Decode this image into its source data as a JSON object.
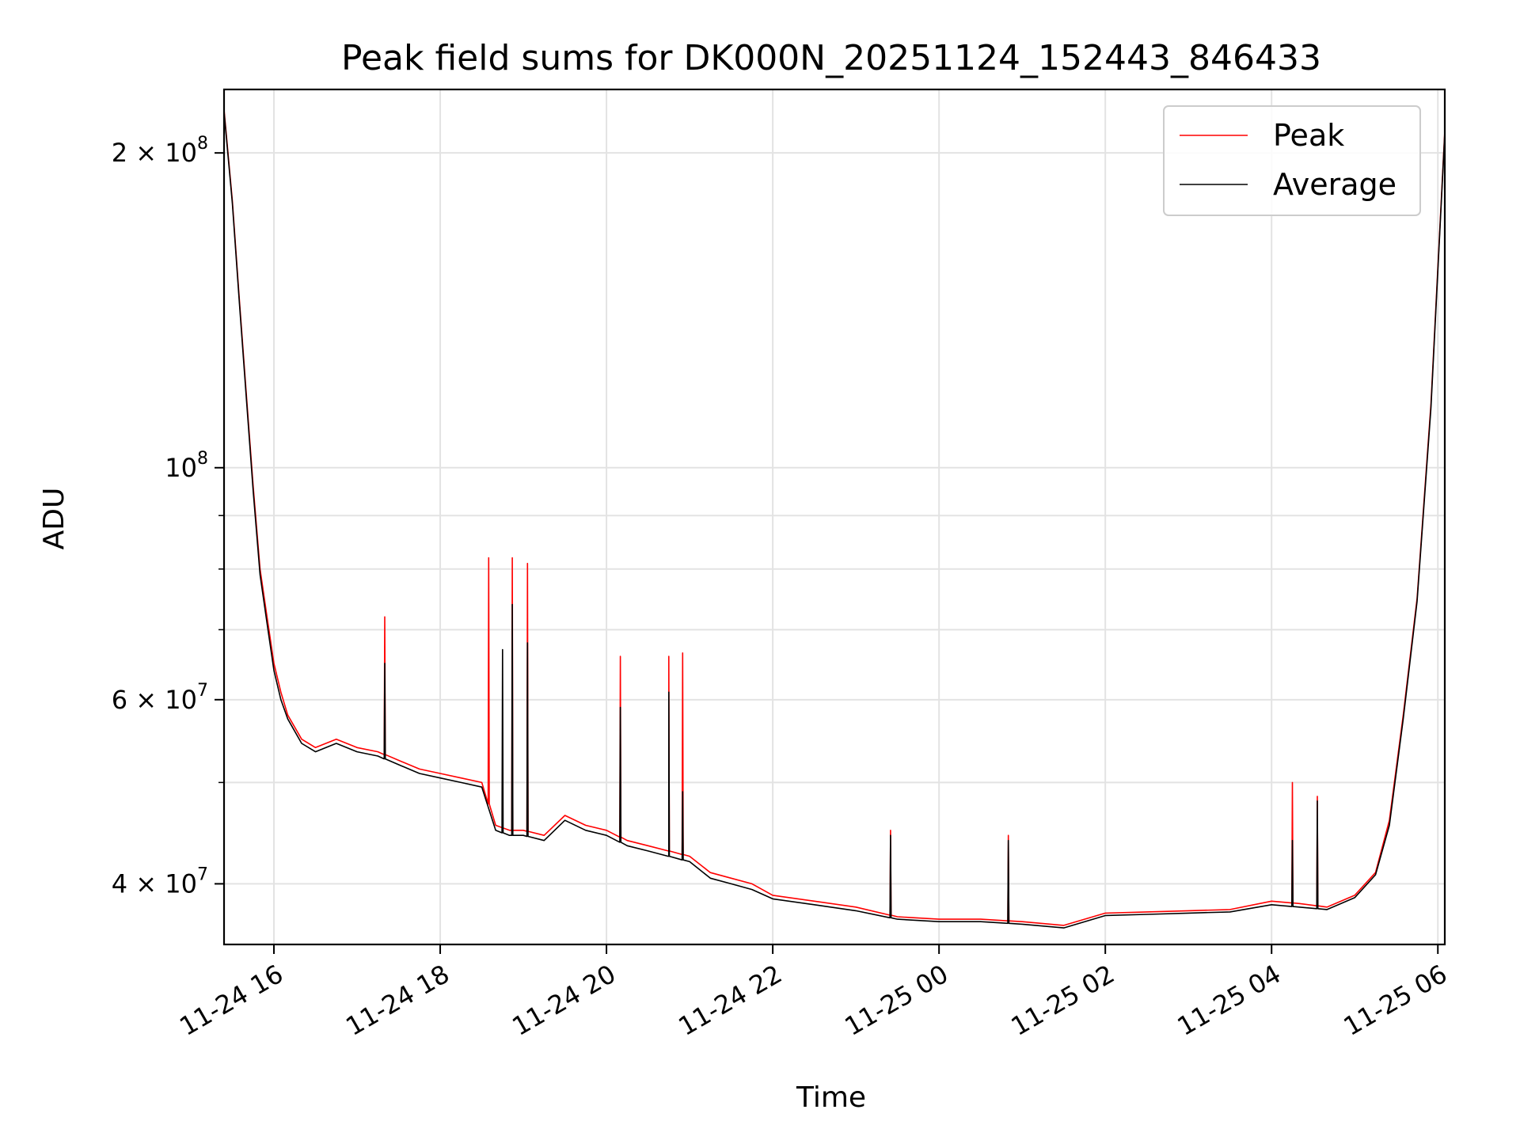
{
  "chart_data": {
    "type": "line",
    "title": "Peak field sums for DK000N_20251124_152443_846433",
    "xlabel": "Time",
    "ylabel": "ADU",
    "y_scale": "log",
    "ylim": [
      35000000,
      230000000
    ],
    "xlim": [
      "11-24 15:24",
      "11-25 06:05"
    ],
    "x_ticks": [
      {
        "t": "11-24 16:00",
        "label": "11-24 16"
      },
      {
        "t": "11-24 18:00",
        "label": "11-24 18"
      },
      {
        "t": "11-24 20:00",
        "label": "11-24 20"
      },
      {
        "t": "11-24 22:00",
        "label": "11-24 22"
      },
      {
        "t": "11-25 00:00",
        "label": "11-25 00"
      },
      {
        "t": "11-25 02:00",
        "label": "11-25 02"
      },
      {
        "t": "11-25 04:00",
        "label": "11-25 04"
      },
      {
        "t": "11-25 06:00",
        "label": "11-25 06"
      }
    ],
    "y_ticks": [
      {
        "value": 40000000,
        "mantissa": "4",
        "exp": "7"
      },
      {
        "value": 60000000,
        "mantissa": "6",
        "exp": "7"
      },
      {
        "value": 100000000,
        "mantissa": "",
        "exp": "8"
      },
      {
        "value": 200000000,
        "mantissa": "2",
        "exp": "8"
      }
    ],
    "y_minor_ticks": [
      50000000,
      70000000,
      80000000,
      90000000
    ],
    "grid": true,
    "legend": {
      "position": "top-right",
      "entries": [
        "Peak",
        "Average"
      ]
    },
    "colors": {
      "peak": "#ff0000",
      "average": "#000000"
    },
    "series": [
      {
        "name": "Peak",
        "color": "#ff0000",
        "x": [
          "11-24 15:24",
          "11-24 15:30",
          "11-24 15:35",
          "11-24 15:40",
          "11-24 15:45",
          "11-24 15:50",
          "11-24 15:55",
          "11-24 16:00",
          "11-24 16:05",
          "11-24 16:10",
          "11-24 16:20",
          "11-24 16:30",
          "11-24 16:45",
          "11-24 17:00",
          "11-24 17:15",
          "11-24 17:30",
          "11-24 17:45",
          "11-24 18:00",
          "11-24 18:15",
          "11-24 18:30",
          "11-24 18:40",
          "11-24 18:50",
          "11-24 19:00",
          "11-24 19:15",
          "11-24 19:30",
          "11-24 19:45",
          "11-24 20:00",
          "11-24 20:15",
          "11-24 20:30",
          "11-24 20:45",
          "11-24 21:00",
          "11-24 21:15",
          "11-24 21:30",
          "11-24 21:45",
          "11-24 22:00",
          "11-24 22:30",
          "11-24 23:00",
          "11-24 23:30",
          "11-25 00:00",
          "11-25 00:30",
          "11-25 01:00",
          "11-25 01:30",
          "11-25 02:00",
          "11-25 02:30",
          "11-25 03:00",
          "11-25 03:30",
          "11-25 04:00",
          "11-25 04:20",
          "11-25 04:40",
          "11-25 05:00",
          "11-25 05:15",
          "11-25 05:25",
          "11-25 05:35",
          "11-25 05:45",
          "11-25 05:55",
          "11-25 06:05"
        ],
        "y": [
          220000000,
          180000000,
          145000000,
          118000000,
          96000000,
          80000000,
          72000000,
          65000000,
          61000000,
          58000000,
          55000000,
          54000000,
          55000000,
          54000000,
          53500000,
          52500000,
          51500000,
          51000000,
          50500000,
          50000000,
          45500000,
          45000000,
          45000000,
          44500000,
          46500000,
          45500000,
          45000000,
          44000000,
          43500000,
          43000000,
          42500000,
          41000000,
          40500000,
          40000000,
          39000000,
          38500000,
          38000000,
          37200000,
          37000000,
          37000000,
          36800000,
          36500000,
          37500000,
          37600000,
          37700000,
          37800000,
          38500000,
          38300000,
          38000000,
          39000000,
          41000000,
          46000000,
          58000000,
          75000000,
          115000000,
          210000000
        ],
        "spikes": [
          {
            "x": "11-24 17:20",
            "y": 72000000
          },
          {
            "x": "11-24 18:35",
            "y": 82000000
          },
          {
            "x": "11-24 18:52",
            "y": 82000000
          },
          {
            "x": "11-24 19:03",
            "y": 81000000
          },
          {
            "x": "11-24 20:10",
            "y": 66000000
          },
          {
            "x": "11-24 20:45",
            "y": 66000000
          },
          {
            "x": "11-24 20:55",
            "y": 66500000
          },
          {
            "x": "11-24 23:25",
            "y": 45000000
          },
          {
            "x": "11-25 00:50",
            "y": 44500000
          },
          {
            "x": "11-25 04:15",
            "y": 50000000
          },
          {
            "x": "11-25 04:33",
            "y": 48500000
          }
        ]
      },
      {
        "name": "Average",
        "color": "#000000",
        "x": [
          "11-24 15:24",
          "11-24 15:30",
          "11-24 15:35",
          "11-24 15:40",
          "11-24 15:45",
          "11-24 15:50",
          "11-24 15:55",
          "11-24 16:00",
          "11-24 16:05",
          "11-24 16:10",
          "11-24 16:20",
          "11-24 16:30",
          "11-24 16:45",
          "11-24 17:00",
          "11-24 17:15",
          "11-24 17:30",
          "11-24 17:45",
          "11-24 18:00",
          "11-24 18:15",
          "11-24 18:30",
          "11-24 18:40",
          "11-24 18:50",
          "11-24 19:00",
          "11-24 19:15",
          "11-24 19:30",
          "11-24 19:45",
          "11-24 20:00",
          "11-24 20:15",
          "11-24 20:30",
          "11-24 20:45",
          "11-24 21:00",
          "11-24 21:15",
          "11-24 21:30",
          "11-24 21:45",
          "11-24 22:00",
          "11-24 22:30",
          "11-24 23:00",
          "11-24 23:30",
          "11-25 00:00",
          "11-25 00:30",
          "11-25 01:00",
          "11-25 01:30",
          "11-25 02:00",
          "11-25 02:30",
          "11-25 03:00",
          "11-25 03:30",
          "11-25 04:00",
          "11-25 04:20",
          "11-25 04:40",
          "11-25 05:00",
          "11-25 05:15",
          "11-25 05:25",
          "11-25 05:35",
          "11-25 05:45",
          "11-25 05:55",
          "11-25 06:05"
        ],
        "y": [
          219000000,
          179000000,
          144000000,
          117000000,
          95000000,
          79000000,
          71000000,
          64000000,
          60000000,
          57500000,
          54500000,
          53500000,
          54500000,
          53500000,
          53000000,
          52000000,
          51000000,
          50500000,
          50000000,
          49500000,
          45000000,
          44500000,
          44500000,
          44000000,
          46000000,
          45000000,
          44500000,
          43500000,
          43000000,
          42500000,
          42000000,
          40500000,
          40000000,
          39500000,
          38700000,
          38200000,
          37700000,
          37000000,
          36800000,
          36800000,
          36600000,
          36300000,
          37300000,
          37400000,
          37500000,
          37600000,
          38200000,
          38000000,
          37800000,
          38800000,
          40800000,
          45500000,
          57500000,
          74500000,
          114000000,
          209000000
        ],
        "spikes": [
          {
            "x": "11-24 17:20",
            "y": 65000000
          },
          {
            "x": "11-24 18:45",
            "y": 67000000
          },
          {
            "x": "11-24 18:52",
            "y": 74000000
          },
          {
            "x": "11-24 19:03",
            "y": 68000000
          },
          {
            "x": "11-24 20:10",
            "y": 59000000
          },
          {
            "x": "11-24 20:45",
            "y": 61000000
          },
          {
            "x": "11-24 20:55",
            "y": 49000000
          },
          {
            "x": "11-24 23:25",
            "y": 44500000
          },
          {
            "x": "11-25 00:50",
            "y": 44000000
          },
          {
            "x": "11-25 04:15",
            "y": 44000000
          },
          {
            "x": "11-25 04:33",
            "y": 48000000
          }
        ]
      }
    ]
  }
}
